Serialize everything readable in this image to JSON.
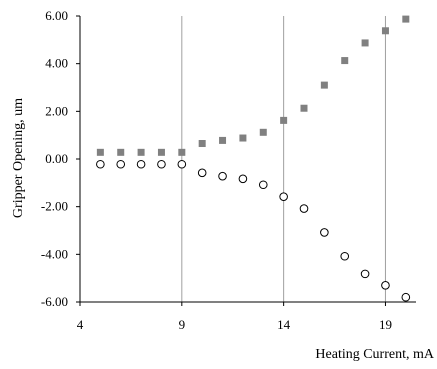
{
  "chart_data": {
    "type": "scatter",
    "title": "",
    "xlabel": "Heating Current, mA",
    "ylabel": "Gripper Opening, um",
    "xlim": [
      4,
      20.5
    ],
    "ylim": [
      -6.0,
      6.0
    ],
    "x_ticks": [
      4,
      9,
      14,
      19
    ],
    "x_tick_labels": [
      "4",
      "9",
      "14",
      "19"
    ],
    "y_ticks": [
      6,
      4,
      2,
      0,
      -2,
      -4,
      -6
    ],
    "y_tick_labels": [
      "6.00",
      "4.00",
      "2.00",
      "0.00",
      "-2.00",
      "-4.00",
      "-6.00"
    ],
    "grid": "vertical",
    "legend": "none",
    "series": [
      {
        "marker": "filled-square",
        "color": "#808080",
        "x": [
          5,
          6,
          7,
          8,
          9,
          10,
          11,
          12,
          13,
          14,
          15,
          16,
          17,
          18,
          19,
          20
        ],
        "y": [
          0.28,
          0.28,
          0.28,
          0.28,
          0.28,
          0.65,
          0.78,
          0.88,
          1.12,
          1.62,
          2.13,
          3.1,
          4.13,
          4.87,
          5.38,
          5.87
        ]
      },
      {
        "marker": "open-circle",
        "color": "#000000",
        "x": [
          5,
          6,
          7,
          8,
          9,
          10,
          11,
          12,
          13,
          14,
          15,
          16,
          17,
          18,
          19,
          20
        ],
        "y": [
          -0.22,
          -0.22,
          -0.22,
          -0.22,
          -0.22,
          -0.58,
          -0.72,
          -0.83,
          -1.08,
          -1.58,
          -2.08,
          -3.08,
          -4.08,
          -4.82,
          -5.3,
          -5.8
        ]
      }
    ]
  }
}
